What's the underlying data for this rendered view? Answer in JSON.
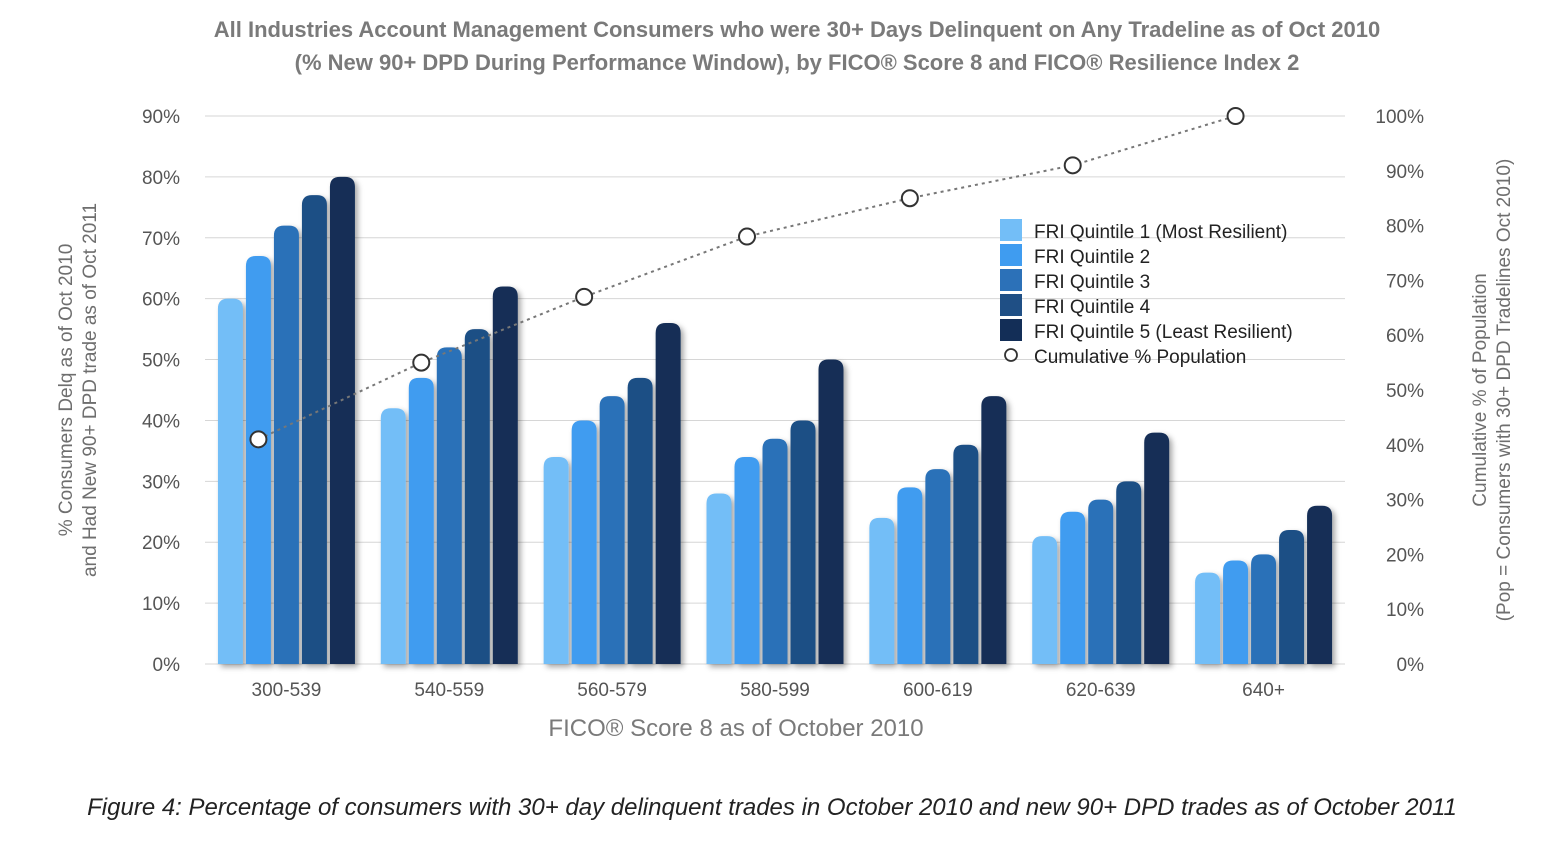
{
  "chart_data": {
    "type": "bar",
    "title": "All Industries Account Management Consumers who were 30+ Days Delinquent on Any Tradeline as of Oct 2010",
    "subtitle": "(% New 90+ DPD During Performance Window), by FICO® Score 8 and FICO® Resilience Index 2",
    "xlabel": "FICO® Score 8 as of October 2010",
    "ylabel": [
      "% Consumers Delq as of Oct 2010",
      "and Had New 90+ DPD trade as of Oct 2011"
    ],
    "y2label": [
      "Cumulative % of Population",
      "(Pop = Consumers with 30+ DPD Tradelines Oct 2010)"
    ],
    "categories": [
      "300-539",
      "540-559",
      "560-579",
      "580-599",
      "600-619",
      "620-639",
      "640+"
    ],
    "ylim": [
      0,
      90
    ],
    "y2lim": [
      0,
      100
    ],
    "yticks": [
      0,
      10,
      20,
      30,
      40,
      50,
      60,
      70,
      80,
      90
    ],
    "y2ticks": [
      0,
      10,
      20,
      30,
      40,
      50,
      60,
      70,
      80,
      90,
      100
    ],
    "ytick_labels": [
      "0%",
      "10%",
      "20%",
      "30%",
      "40%",
      "50%",
      "60%",
      "70%",
      "80%",
      "90%"
    ],
    "y2tick_labels": [
      "0%",
      "10%",
      "20%",
      "30%",
      "40%",
      "50%",
      "60%",
      "70%",
      "80%",
      "90%",
      "100%"
    ],
    "series": [
      {
        "name": "FRI Quintile 1 (Most Resilient)",
        "color": "#73bef7",
        "values": [
          60,
          42,
          34,
          28,
          24,
          21,
          15
        ]
      },
      {
        "name": "FRI Quintile 2",
        "color": "#3f9cf0",
        "values": [
          67,
          47,
          40,
          34,
          29,
          25,
          17
        ]
      },
      {
        "name": "FRI Quintile 3",
        "color": "#2c71b8",
        "values": [
          72,
          52,
          44,
          37,
          32,
          27,
          18
        ]
      },
      {
        "name": "FRI Quintile 4",
        "color": "#1f4f85",
        "values": [
          77,
          55,
          47,
          40,
          36,
          30,
          22
        ]
      },
      {
        "name": "FRI Quintile 5 (Least Resilient)",
        "color": "#132e57",
        "values": [
          80,
          62,
          56,
          50,
          44,
          38,
          26
        ]
      }
    ],
    "line_series": {
      "name": "Cumulative % Population",
      "axis": "right",
      "values": [
        41,
        55,
        67,
        78,
        85,
        91,
        100
      ]
    },
    "legend_position": "top-right",
    "grid": true
  },
  "caption": "Figure 4: Percentage of consumers with 30+ day delinquent trades in October 2010 and new 90+ DPD trades as of October 2011"
}
